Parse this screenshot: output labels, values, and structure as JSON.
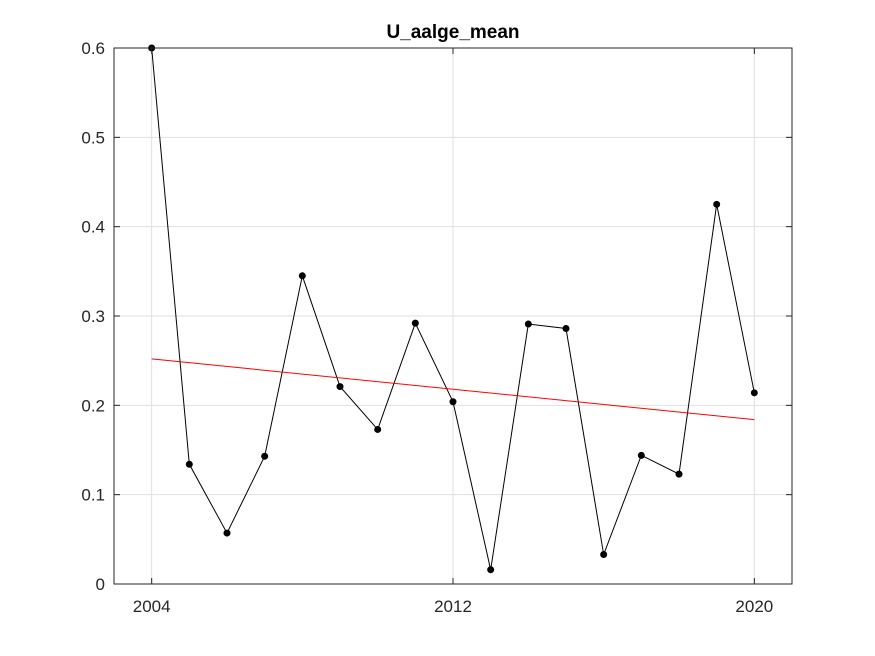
{
  "chart_data": {
    "type": "line",
    "title": "U_aalge_mean",
    "xlabel": "",
    "ylabel": "",
    "xlim": [
      2003,
      2021
    ],
    "ylim": [
      0,
      0.6
    ],
    "x_ticks": [
      2004,
      2012,
      2020
    ],
    "x_tick_labels": [
      "2004",
      "2012",
      "2020"
    ],
    "y_ticks": [
      0,
      0.1,
      0.2,
      0.3,
      0.4,
      0.5,
      0.6
    ],
    "y_tick_labels": [
      "0",
      "0.1",
      "0.2",
      "0.3",
      "0.4",
      "0.5",
      "0.6"
    ],
    "grid": true,
    "series": [
      {
        "style": "line-with-markers",
        "color": "#000000",
        "x": [
          2004,
          2005,
          2006,
          2007,
          2008,
          2009,
          2010,
          2011,
          2012,
          2013,
          2014,
          2015,
          2016,
          2017,
          2018,
          2019,
          2020
        ],
        "values": [
          0.6,
          0.134,
          0.057,
          0.143,
          0.345,
          0.221,
          0.173,
          0.292,
          0.204,
          0.016,
          0.291,
          0.286,
          0.033,
          0.144,
          0.123,
          0.425,
          0.214
        ]
      },
      {
        "style": "trend-line",
        "color": "#ff0000",
        "x": [
          2004,
          2020
        ],
        "values": [
          0.252,
          0.184
        ]
      }
    ]
  }
}
